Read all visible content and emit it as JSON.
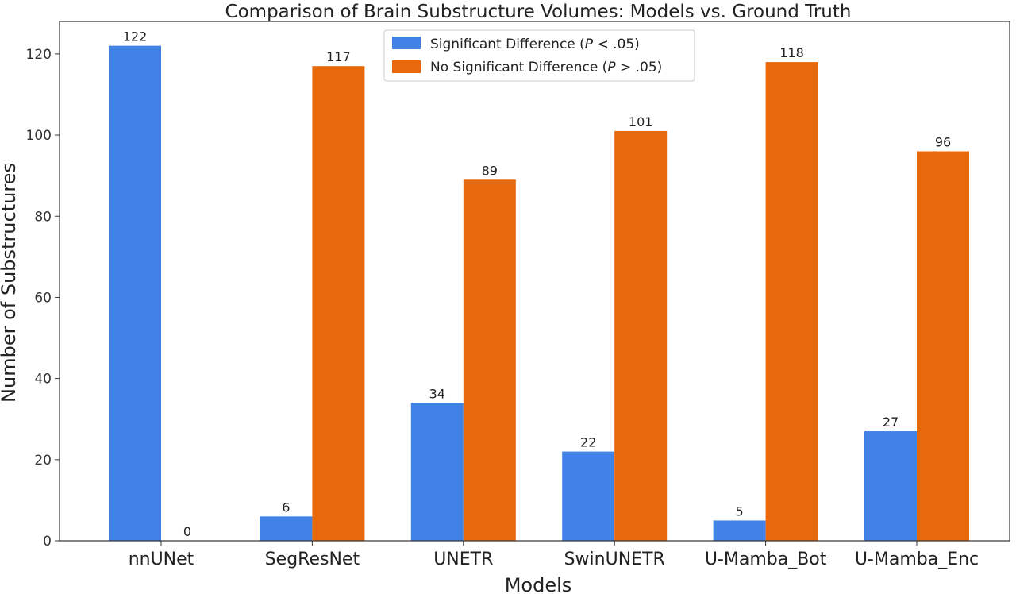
{
  "chart_data": {
    "type": "bar",
    "title": "Comparison of Brain Substructure Volumes: Models vs. Ground Truth",
    "xlabel": "Models",
    "ylabel": "Number of Substructures",
    "categories": [
      "nnUNet",
      "SegResNet",
      "UNETR",
      "SwinUNETR",
      "U-Mamba_Bot",
      "U-Mamba_Enc"
    ],
    "series": [
      {
        "name": "Significant Difference (P < .05)",
        "legend_parts": [
          "Significant Difference (",
          "P",
          " < .05)"
        ],
        "color": "#4182e6",
        "values": [
          122,
          6,
          34,
          22,
          5,
          27
        ]
      },
      {
        "name": "No Significant Difference (P > .05)",
        "legend_parts": [
          "No Significant Difference (",
          "P",
          " > .05)"
        ],
        "color": "#e8690c",
        "values": [
          0,
          117,
          89,
          101,
          118,
          96
        ]
      }
    ],
    "ylim": [
      0,
      128
    ],
    "yticks": [
      0,
      20,
      40,
      60,
      80,
      100,
      120
    ],
    "grid": false,
    "legend_position": "top-center"
  }
}
